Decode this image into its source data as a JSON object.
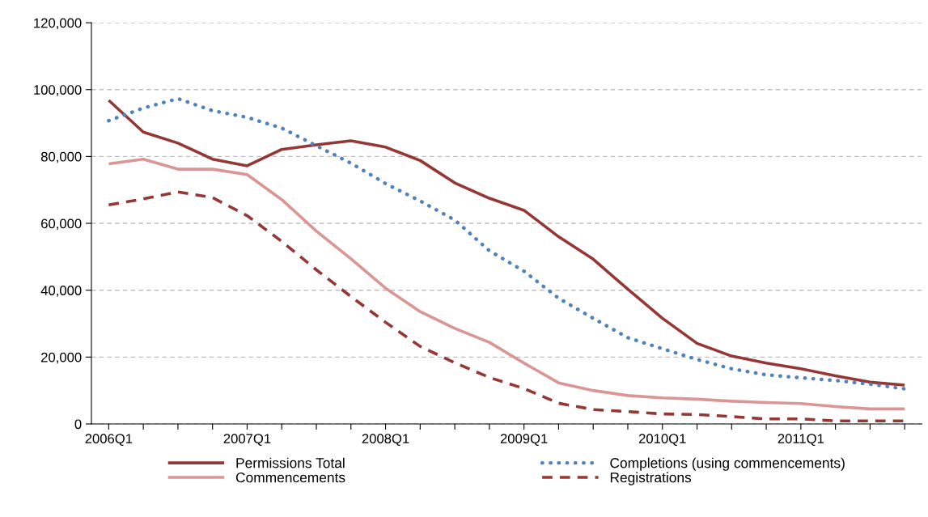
{
  "chart_data": {
    "type": "line",
    "categories": [
      "2006Q1",
      null,
      null,
      null,
      "2007Q1",
      null,
      null,
      null,
      "2008Q1",
      null,
      null,
      null,
      "2009Q1",
      null,
      null,
      null,
      "2010Q1",
      null,
      null,
      null,
      "2011Q1",
      null,
      null,
      null
    ],
    "series": [
      {
        "name": "Permissions Total",
        "color": "#953735",
        "line_style": "solid",
        "values": [
          96800,
          87300,
          84000,
          79200,
          77200,
          82100,
          83500,
          84700,
          82800,
          78800,
          72100,
          67500,
          63900,
          56000,
          49300,
          40300,
          31600,
          24100,
          20300,
          18200,
          16500,
          14400,
          12500,
          11600
        ]
      },
      {
        "name": "Completions (using commencements)",
        "color": "#4f81bd",
        "line_style": "dotted",
        "values": [
          90700,
          94500,
          97300,
          93700,
          91700,
          88500,
          83200,
          78000,
          71900,
          66700,
          61000,
          51800,
          45700,
          37600,
          31600,
          25800,
          22500,
          19300,
          16500,
          14700,
          13800,
          13000,
          11900,
          10500
        ]
      },
      {
        "name": "Commencements",
        "color": "#d99694",
        "line_style": "solid",
        "values": [
          77800,
          79200,
          76200,
          76200,
          74600,
          67100,
          57700,
          49400,
          40600,
          33600,
          28600,
          24400,
          18200,
          12300,
          10000,
          8500,
          7800,
          7400,
          6800,
          6400,
          6100,
          5200,
          4500,
          4500
        ]
      },
      {
        "name": "Registrations",
        "color": "#953735",
        "line_style": "dashed",
        "values": [
          65500,
          67300,
          69400,
          67700,
          62300,
          54600,
          46100,
          38100,
          30400,
          23200,
          18300,
          13900,
          10600,
          6200,
          4300,
          3700,
          3000,
          2800,
          2200,
          1500,
          1500,
          900,
          900,
          900
        ]
      }
    ],
    "ylim": [
      0,
      120000
    ],
    "yticks": [
      {
        "value": 0,
        "label": "0"
      },
      {
        "value": 20000,
        "label": "20,000"
      },
      {
        "value": 40000,
        "label": "40,000"
      },
      {
        "value": 60000,
        "label": "60,000"
      },
      {
        "value": 80000,
        "label": "80,000"
      },
      {
        "value": 100000,
        "label": "100,000"
      },
      {
        "value": 120000,
        "label": "120,000"
      }
    ],
    "grid": "y",
    "legend": "bottom",
    "marker": "none"
  }
}
